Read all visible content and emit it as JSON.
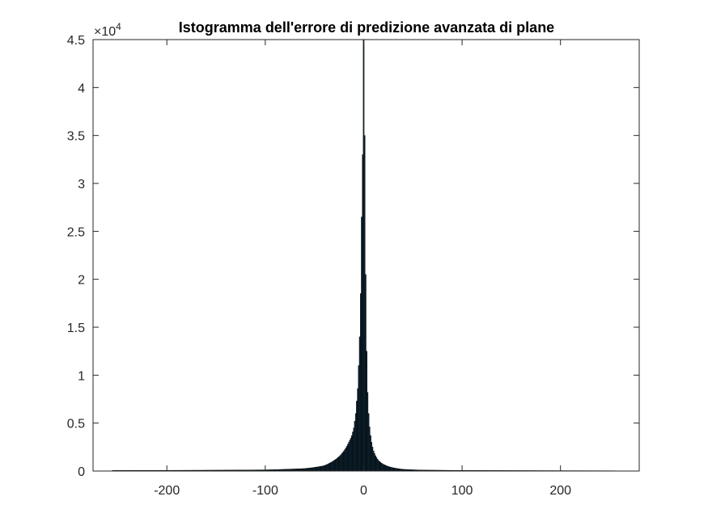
{
  "chart_data": {
    "type": "bar",
    "title": "Istogramma dell'errore di predizione avanzata di plane",
    "xlabel": "",
    "ylabel": "",
    "xlim": [
      -275,
      280
    ],
    "ylim": [
      0,
      45000
    ],
    "exponent_label": {
      "base": "×10",
      "power": "4"
    },
    "xticks": [
      -200,
      -100,
      0,
      100,
      200
    ],
    "xtick_labels": [
      "-200",
      "-100",
      "0",
      "100",
      "200"
    ],
    "yticks": [
      0,
      5000,
      10000,
      15000,
      20000,
      25000,
      30000,
      35000,
      40000,
      45000
    ],
    "ytick_labels": [
      "0",
      "0.5",
      "1",
      "1.5",
      "2",
      "2.5",
      "3",
      "3.5",
      "4",
      "4.5"
    ],
    "grid": false,
    "colors": {
      "bar_fill": "#0e2636",
      "bar_edge": "#000000",
      "axis": "#262626"
    },
    "bins": {
      "x": [
        -255,
        -200,
        -150,
        -100,
        -80,
        -60,
        -50,
        -40,
        -35,
        -30,
        -25,
        -20,
        -15,
        -12,
        -10,
        -9,
        -8,
        -7,
        -6,
        -5,
        -4,
        -3,
        -2,
        -1,
        0,
        1,
        2,
        3,
        4,
        5,
        6,
        7,
        8,
        9,
        10,
        12,
        15,
        20,
        25,
        30,
        35,
        40,
        50,
        60,
        80,
        100,
        150,
        200,
        255
      ],
      "counts": [
        60,
        70,
        90,
        120,
        180,
        260,
        380,
        560,
        800,
        1100,
        1500,
        2100,
        3000,
        3700,
        4500,
        5200,
        6000,
        7300,
        8600,
        11000,
        14000,
        18500,
        26500,
        33000,
        45000,
        35000,
        20500,
        12500,
        8200,
        6000,
        4600,
        3700,
        3000,
        2500,
        2100,
        1600,
        1100,
        700,
        480,
        340,
        250,
        180,
        130,
        100,
        80,
        60,
        50,
        40,
        30
      ]
    }
  }
}
